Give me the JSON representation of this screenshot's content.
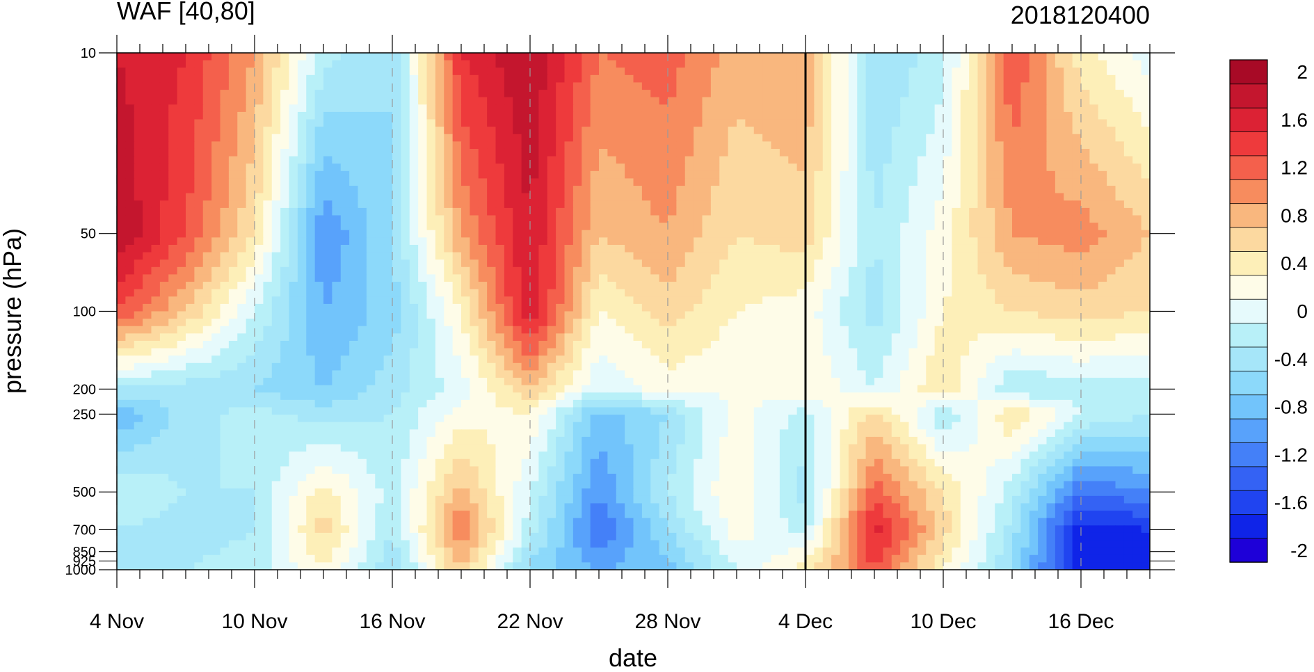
{
  "chart_data": {
    "type": "heatmap",
    "title_left": "WAF [40,80]",
    "title_right": "2018120400",
    "xlabel": "date",
    "ylabel": "pressure (hPa)",
    "x_ticks": [
      "4 Nov",
      "10 Nov",
      "16 Nov",
      "22 Nov",
      "28 Nov",
      "4 Dec",
      "10 Dec",
      "16 Dec"
    ],
    "x_range": [
      "4 Nov",
      "19 Dec"
    ],
    "y_scale": "log",
    "y_reversed": true,
    "y_ticks": [
      10,
      50,
      100,
      200,
      250,
      500,
      700,
      850,
      925,
      1000
    ],
    "y_tick_labels": [
      "10",
      "50",
      "100",
      "200",
      "250",
      "500",
      "700",
      "850",
      "925",
      "1000"
    ],
    "ylim": [
      1000,
      10
    ],
    "vertical_marker": "4 Dec",
    "grid": "dashed vertical lines at date ticks",
    "colorbar": {
      "position": "right",
      "levels": [
        -2.2,
        -2.0,
        -1.8,
        -1.6,
        -1.4,
        -1.2,
        -1.0,
        -0.8,
        -0.6,
        -0.4,
        -0.2,
        0,
        0.2,
        0.4,
        0.6,
        0.8,
        1.0,
        1.2,
        1.4,
        1.6,
        1.8,
        2.0
      ],
      "labels": [
        "2",
        "1.6",
        "1.2",
        "0.8",
        "0.4",
        "0",
        "-0.4",
        "-0.8",
        "-1.2",
        "-1.6",
        "-2"
      ],
      "colors": [
        "#1e00d8",
        "#0f24e8",
        "#2044f0",
        "#3462f4",
        "#4480f8",
        "#58a2fb",
        "#72c4fb",
        "#8cd9fa",
        "#a6e6f9",
        "#b8f0f8",
        "#e6fafc",
        "#fefce8",
        "#fdefb8",
        "#fcd9a0",
        "#f9b77e",
        "#f78c5e",
        "#f4604c",
        "#ee3a3c",
        "#dc2234",
        "#c4162e",
        "#a80a26"
      ]
    },
    "values": {
      "times_days_since_4Nov": [
        0,
        3,
        6,
        9,
        12,
        15,
        18,
        21,
        24,
        27,
        30,
        33,
        36,
        39,
        42,
        45
      ],
      "pressure_hPa": [
        10,
        50,
        100,
        200,
        250,
        500,
        700,
        1000
      ],
      "WAF": [
        [
          1.6,
          1.4,
          0.8,
          -0.3,
          -0.6,
          1.4,
          1.8,
          1.0,
          1.1,
          0.7,
          0.8,
          -0.6,
          -0.3,
          1.2,
          0.3,
          -0.1
        ],
        [
          1.8,
          1.2,
          0.4,
          -1.2,
          -0.6,
          0.8,
          1.6,
          0.6,
          0.8,
          0.4,
          0.5,
          -0.4,
          0.1,
          0.8,
          0.9,
          0.6
        ],
        [
          1.2,
          0.6,
          -0.2,
          -1.0,
          -0.7,
          0.2,
          1.6,
          0.2,
          0.5,
          0.2,
          0.1,
          -0.5,
          0.2,
          0.4,
          0.5,
          0.4
        ],
        [
          -0.4,
          -0.5,
          -0.6,
          -0.8,
          -0.5,
          -0.1,
          0.6,
          -0.2,
          0.1,
          0.0,
          0.2,
          -0.2,
          0.4,
          -0.4,
          -0.3,
          -0.3
        ],
        [
          -1.0,
          -0.5,
          -0.3,
          -0.5,
          -0.4,
          0.1,
          0.2,
          -0.9,
          -0.6,
          0.1,
          -0.3,
          0.5,
          -0.4,
          0.4,
          -0.2,
          -0.4
        ],
        [
          -0.2,
          -0.4,
          -0.4,
          0.3,
          -0.3,
          0.7,
          -0.2,
          -1.2,
          -0.4,
          0.2,
          -0.5,
          1.1,
          0.4,
          -0.3,
          -1.4,
          -1.2
        ],
        [
          -0.4,
          -0.5,
          -0.4,
          0.5,
          -0.4,
          1.0,
          -0.3,
          -1.4,
          -0.6,
          0.1,
          -0.3,
          1.5,
          0.5,
          -0.5,
          -1.9,
          -1.8
        ],
        [
          -0.6,
          -0.4,
          -0.3,
          0.2,
          -0.6,
          0.6,
          -0.7,
          -1.0,
          -0.9,
          -0.2,
          0.3,
          1.2,
          0.2,
          -0.6,
          -2.0,
          -1.9
        ]
      ]
    }
  }
}
